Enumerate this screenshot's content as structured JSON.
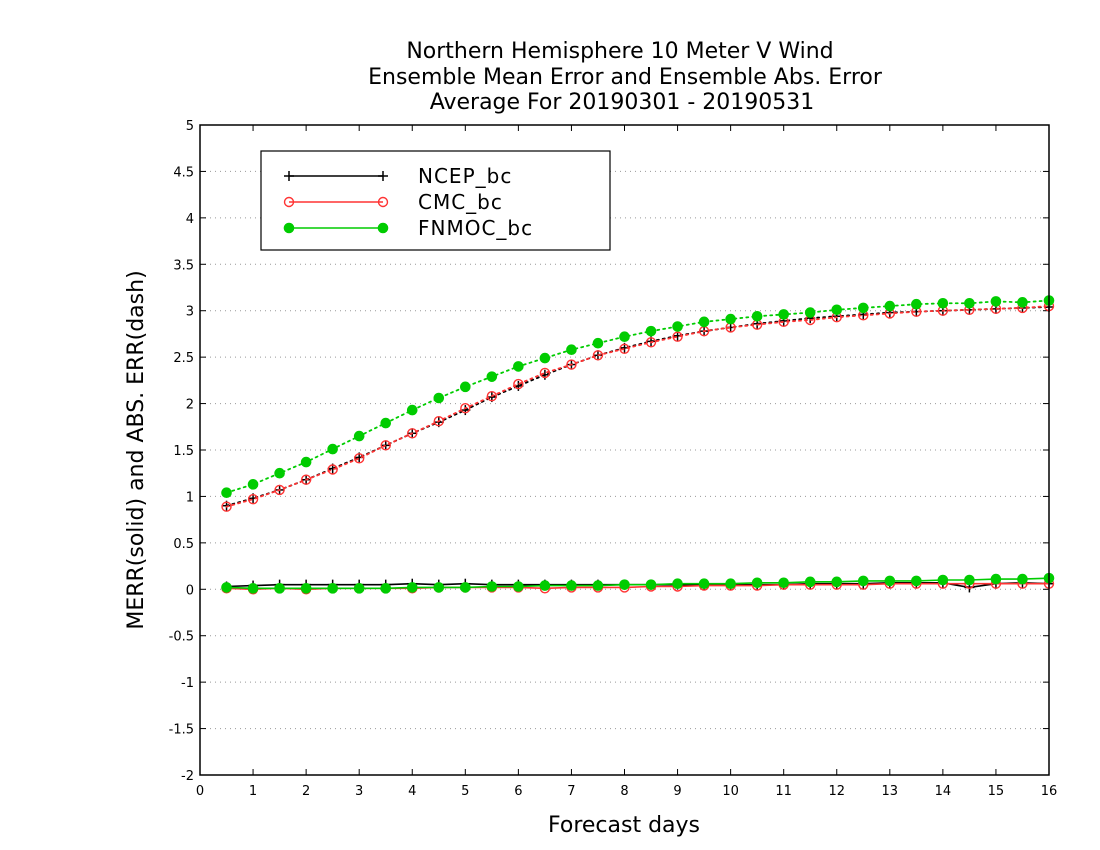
{
  "chart_data": {
    "type": "line",
    "title": [
      "Northern Hemisphere 10 Meter V Wind",
      "Ensemble Mean Error and Ensemble Abs. Error",
      "Average For 20190301 - 20190531"
    ],
    "xlabel": "Forecast days",
    "ylabel": "MERR(solid) and ABS. ERR(dash)",
    "xlim": [
      0,
      16
    ],
    "ylim": [
      -2,
      5
    ],
    "xticks": [
      0,
      1,
      2,
      3,
      4,
      5,
      6,
      7,
      8,
      9,
      10,
      11,
      12,
      13,
      14,
      15,
      16
    ],
    "yticks": [
      -2,
      -1.5,
      -1,
      -0.5,
      0,
      0.5,
      1,
      1.5,
      2,
      2.5,
      3,
      3.5,
      4,
      4.5,
      5
    ],
    "grid": true,
    "legend": "top-left",
    "x": [
      0.5,
      1,
      1.5,
      2,
      2.5,
      3,
      3.5,
      4,
      4.5,
      5,
      5.5,
      6,
      6.5,
      7,
      7.5,
      8,
      8.5,
      9,
      9.5,
      10,
      10.5,
      11,
      11.5,
      12,
      12.5,
      13,
      13.5,
      14,
      14.5,
      15,
      15.5,
      16
    ],
    "series": [
      {
        "name": "NCEP_bc",
        "color": "#000000",
        "marker": "plus",
        "mean_error": [
          0.03,
          0.04,
          0.05,
          0.05,
          0.05,
          0.05,
          0.05,
          0.06,
          0.05,
          0.06,
          0.05,
          0.05,
          0.05,
          0.05,
          0.05,
          0.05,
          0.05,
          0.05,
          0.05,
          0.05,
          0.05,
          0.05,
          0.06,
          0.06,
          0.06,
          0.07,
          0.07,
          0.07,
          0.02,
          0.06,
          0.07,
          0.06
        ],
        "abs_error": [
          0.9,
          0.98,
          1.07,
          1.18,
          1.3,
          1.42,
          1.55,
          1.68,
          1.8,
          1.93,
          2.07,
          2.19,
          2.31,
          2.42,
          2.52,
          2.6,
          2.67,
          2.73,
          2.78,
          2.82,
          2.86,
          2.89,
          2.92,
          2.94,
          2.96,
          2.98,
          2.99,
          3.0,
          3.01,
          3.02,
          3.03,
          3.04
        ]
      },
      {
        "name": "CMC_bc",
        "color": "#ff3333",
        "marker": "open-circle",
        "mean_error": [
          0.01,
          0.0,
          0.01,
          0.0,
          0.01,
          0.01,
          0.01,
          0.01,
          0.02,
          0.02,
          0.02,
          0.02,
          0.01,
          0.02,
          0.02,
          0.02,
          0.03,
          0.03,
          0.04,
          0.04,
          0.04,
          0.05,
          0.05,
          0.05,
          0.05,
          0.06,
          0.06,
          0.06,
          0.06,
          0.06,
          0.06,
          0.06
        ],
        "abs_error": [
          0.89,
          0.97,
          1.07,
          1.18,
          1.29,
          1.41,
          1.55,
          1.68,
          1.81,
          1.95,
          2.08,
          2.21,
          2.33,
          2.42,
          2.52,
          2.59,
          2.66,
          2.72,
          2.78,
          2.82,
          2.85,
          2.88,
          2.9,
          2.93,
          2.95,
          2.97,
          2.99,
          3.0,
          3.01,
          3.02,
          3.03,
          3.05
        ]
      },
      {
        "name": "FNMOC_bc",
        "color": "#00cc00",
        "marker": "filled-circle",
        "mean_error": [
          0.02,
          0.01,
          0.01,
          0.01,
          0.01,
          0.01,
          0.01,
          0.02,
          0.02,
          0.02,
          0.03,
          0.03,
          0.04,
          0.04,
          0.04,
          0.05,
          0.05,
          0.06,
          0.06,
          0.06,
          0.07,
          0.07,
          0.08,
          0.08,
          0.09,
          0.09,
          0.09,
          0.1,
          0.1,
          0.11,
          0.11,
          0.12
        ],
        "abs_error": [
          1.04,
          1.13,
          1.25,
          1.37,
          1.51,
          1.65,
          1.79,
          1.93,
          2.06,
          2.18,
          2.29,
          2.4,
          2.49,
          2.58,
          2.65,
          2.72,
          2.78,
          2.83,
          2.88,
          2.91,
          2.94,
          2.96,
          2.98,
          3.01,
          3.03,
          3.05,
          3.07,
          3.08,
          3.08,
          3.1,
          3.09,
          3.11
        ]
      }
    ]
  }
}
